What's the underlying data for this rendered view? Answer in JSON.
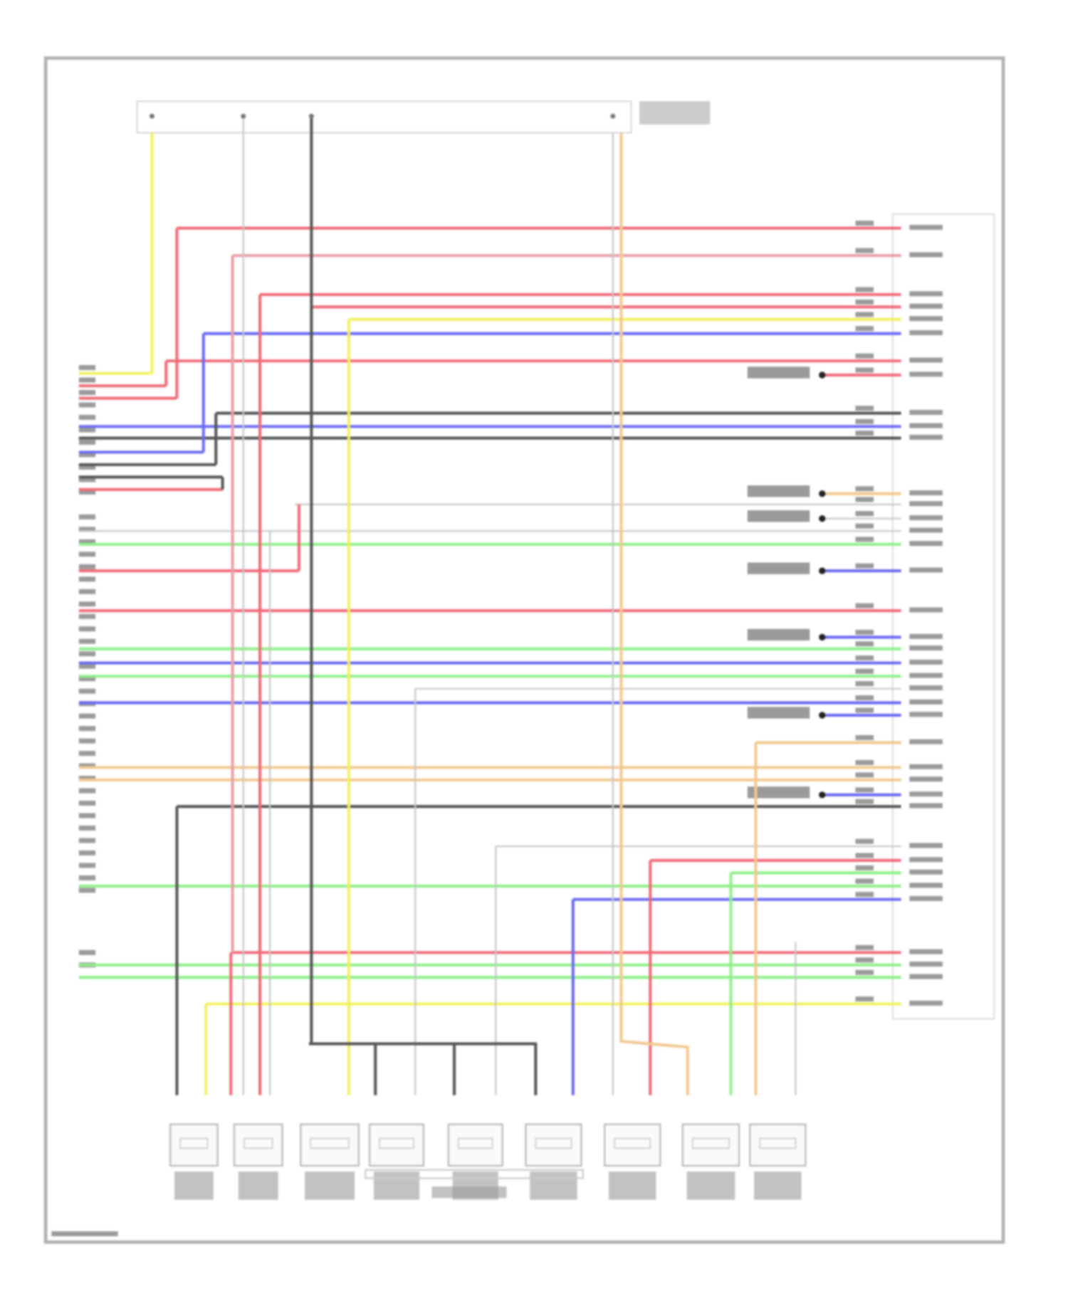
{
  "diagram": {
    "type": "wiring-diagram",
    "text_legible": false,
    "wire_colors": {
      "red": "#f06a78",
      "pink": "#e8a0a8",
      "yellow": "#f2f060",
      "blue": "#6a6af2",
      "green": "#8ff08a",
      "dark": "#555555",
      "gray": "#c8c8c8",
      "orange": "#f2c890",
      "frame": "#b0b0b0"
    },
    "components": {
      "bottom_connector_count": 9,
      "sensor_group_count": 4
    }
  }
}
